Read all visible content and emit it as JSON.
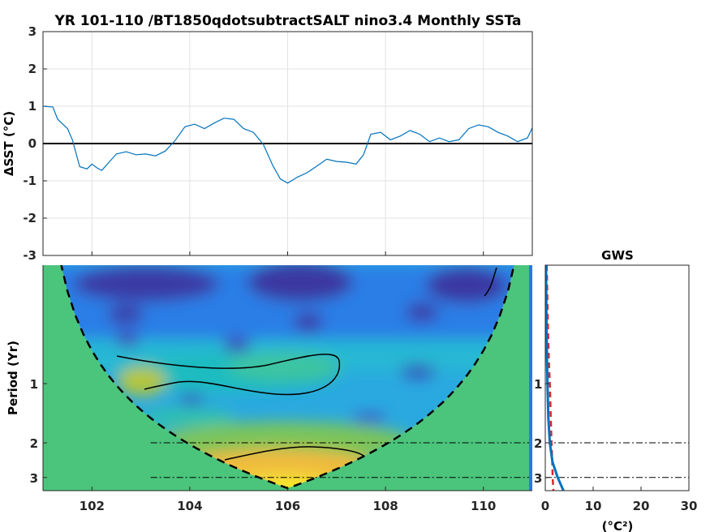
{
  "chart_data": [
    {
      "type": "line",
      "title": "YR 101-110 /BT1850qdotsubtractSALT nino3.4 Monthly SSTa",
      "ylabel": "ΔSST (°C)",
      "xlim": [
        101,
        111
      ],
      "ylim": [
        -3,
        3
      ],
      "yticks": [
        "-3",
        "-2",
        "-1",
        "0",
        "1",
        "2",
        "3"
      ],
      "grid": true,
      "zero_line": 0,
      "series": [
        {
          "color": "#0072bd",
          "x": [
            101.0,
            101.2,
            101.3,
            101.5,
            101.6,
            101.75,
            101.9,
            102.0,
            102.1,
            102.2,
            102.35,
            102.5,
            102.7,
            102.9,
            103.1,
            103.3,
            103.5,
            103.7,
            103.9,
            104.1,
            104.3,
            104.5,
            104.7,
            104.9,
            105.1,
            105.3,
            105.5,
            105.7,
            105.85,
            106.0,
            106.2,
            106.4,
            106.6,
            106.8,
            107.0,
            107.2,
            107.4,
            107.55,
            107.7,
            107.9,
            108.1,
            108.3,
            108.5,
            108.7,
            108.9,
            109.1,
            109.3,
            109.5,
            109.7,
            109.9,
            110.1,
            110.3,
            110.5,
            110.7,
            110.9,
            111.0
          ],
          "values": [
            1.0,
            0.98,
            0.65,
            0.4,
            0.1,
            -0.62,
            -0.68,
            -0.55,
            -0.65,
            -0.72,
            -0.5,
            -0.28,
            -0.22,
            -0.3,
            -0.28,
            -0.33,
            -0.2,
            0.08,
            0.45,
            0.52,
            0.4,
            0.55,
            0.68,
            0.65,
            0.4,
            0.3,
            -0.02,
            -0.6,
            -0.95,
            -1.06,
            -0.9,
            -0.78,
            -0.6,
            -0.42,
            -0.48,
            -0.5,
            -0.55,
            -0.3,
            0.25,
            0.3,
            0.1,
            0.2,
            0.35,
            0.25,
            0.05,
            0.15,
            0.05,
            0.1,
            0.4,
            0.5,
            0.45,
            0.3,
            0.2,
            0.05,
            0.15,
            0.42
          ]
        }
      ]
    },
    {
      "type": "heatmap",
      "ylabel": "Period (Yr)",
      "xlim": [
        101,
        111
      ],
      "xticks": [
        "102",
        "104",
        "106",
        "108",
        "110"
      ],
      "yticks": [
        "1",
        "2",
        "3"
      ],
      "period_range": [
        0.25,
        3.5
      ],
      "colormap": "parula",
      "cone_of_influence": "dashed",
      "significance_contours": true,
      "dash_dot_lines_at_period": [
        2,
        3
      ]
    },
    {
      "type": "line",
      "title": "GWS",
      "xlabel": "(°C²)",
      "xlim": [
        0,
        30
      ],
      "xticks": [
        "0",
        "10",
        "20",
        "30"
      ],
      "yticks": [
        "1",
        "2",
        "3"
      ],
      "series": [
        {
          "color": "#0072bd",
          "style": "solid",
          "period": [
            0.25,
            0.5,
            0.75,
            1.0,
            1.5,
            2.0,
            2.5,
            3.0,
            3.5
          ],
          "values": [
            0.15,
            0.25,
            0.35,
            0.45,
            0.65,
            0.95,
            1.5,
            2.6,
            3.8
          ]
        },
        {
          "color": "#d9262b",
          "style": "dashed",
          "period": [
            0.25,
            0.5,
            0.75,
            1.0,
            1.5,
            2.0,
            2.5,
            3.0,
            3.5
          ],
          "values": [
            0.3,
            0.55,
            0.75,
            0.95,
            1.15,
            1.3,
            1.45,
            1.55,
            1.7
          ]
        }
      ]
    }
  ]
}
